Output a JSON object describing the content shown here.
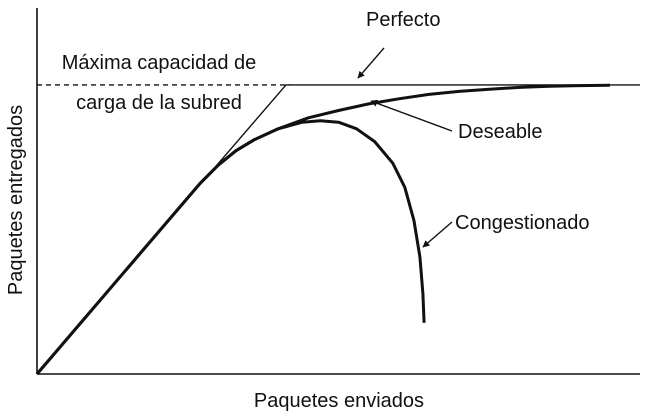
{
  "chart_data": {
    "type": "line",
    "xlabel": "Paquetes enviados",
    "ylabel": "Paquetes entregados",
    "xlim": [
      0,
      100
    ],
    "ylim": [
      0,
      100
    ],
    "grid": false,
    "capacity_label_line1": "Máxima capacidad de",
    "capacity_label_line2": "carga de la subred",
    "capacity_level": 79,
    "series": [
      {
        "name": "Perfecto",
        "style": "thin",
        "x": [
          0,
          41.3,
          100
        ],
        "y": [
          0,
          79,
          79
        ]
      },
      {
        "name": "Deseable",
        "style": "thick",
        "x": [
          0,
          27,
          30,
          33,
          36,
          40,
          45,
          50,
          55,
          60,
          65,
          70,
          75,
          80,
          85,
          90,
          95
        ],
        "y": [
          0,
          52,
          57,
          61,
          64,
          67,
          70,
          72,
          73.8,
          75.2,
          76.4,
          77.2,
          77.8,
          78.3,
          78.6,
          78.8,
          78.9
        ]
      },
      {
        "name": "Congestionado",
        "style": "thick",
        "x": [
          0,
          27,
          30,
          33,
          36,
          40,
          44,
          47,
          50,
          53,
          56,
          59,
          61,
          62.5,
          63.5,
          64,
          64.2
        ],
        "y": [
          0,
          52,
          57,
          61,
          64,
          67,
          68.8,
          69.2,
          68.8,
          67,
          63.5,
          57.6,
          51,
          42,
          32,
          22,
          14
        ]
      }
    ]
  }
}
